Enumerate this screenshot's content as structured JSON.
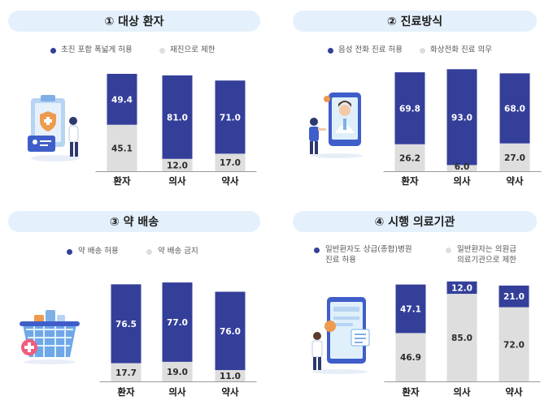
{
  "colors": {
    "primary": "#343f9a",
    "secondary": "#dedede",
    "pill": "#e4f0fb"
  },
  "chart_data": [
    {
      "type": "bar",
      "title": "① 대상 환자",
      "categories": [
        "환자",
        "의사",
        "약사"
      ],
      "series": [
        {
          "name": "초진 포함 폭넓게 허용",
          "values": [
            49.4,
            81.0,
            71.0
          ]
        },
        {
          "name": "재진으로 제한",
          "values": [
            45.1,
            12.0,
            17.0
          ]
        }
      ],
      "value_labels": [
        [
          "49.4",
          "81.0",
          "71.0"
        ],
        [
          "45.1",
          "12.0",
          "17.0"
        ]
      ],
      "ylim": [
        0,
        100
      ]
    },
    {
      "type": "bar",
      "title": "② 진료방식",
      "categories": [
        "환자",
        "의사",
        "약사"
      ],
      "series": [
        {
          "name": "음성 전화 진료 허용",
          "values": [
            69.8,
            93.0,
            68.0
          ]
        },
        {
          "name": "화상전화 진료 의무",
          "values": [
            26.2,
            6.0,
            27.0
          ]
        }
      ],
      "value_labels": [
        [
          "69.8",
          "93.0",
          "68.0"
        ],
        [
          "26.2",
          "6.0",
          "27.0"
        ]
      ],
      "ylim": [
        0,
        100
      ]
    },
    {
      "type": "bar",
      "title": "③ 약 배송",
      "categories": [
        "환자",
        "의사",
        "약사"
      ],
      "series": [
        {
          "name": "약 배송 허용",
          "values": [
            76.5,
            77.0,
            76.0
          ]
        },
        {
          "name": "약 배송 금지",
          "values": [
            17.7,
            19.0,
            11.0
          ]
        }
      ],
      "value_labels": [
        [
          "76.5",
          "77.0",
          "76.0"
        ],
        [
          "17.7",
          "19.0",
          "11.0"
        ]
      ],
      "ylim": [
        0,
        100
      ]
    },
    {
      "type": "bar",
      "title": "④ 시행 의료기관",
      "categories": [
        "환자",
        "의사",
        "약사"
      ],
      "series": [
        {
          "name": "일반환자도 상급(종합)병원 진료 허용",
          "values": [
            47.1,
            12.0,
            21.0
          ]
        },
        {
          "name": "일반환자는 의원급 의료기관으로 제한",
          "values": [
            46.9,
            85.0,
            72.0
          ]
        }
      ],
      "value_labels": [
        [
          "47.1",
          "12.0",
          "21.0"
        ],
        [
          "46.9",
          "85.0",
          "72.0"
        ]
      ],
      "ylim": [
        0,
        100
      ]
    }
  ],
  "legends": [
    {
      "a": [
        "초진 포함 폭넓게 허용"
      ],
      "b": [
        "재진으로 제한"
      ]
    },
    {
      "a": [
        "음성 전화 진료 허용"
      ],
      "b": [
        "화상전화 진료 의무"
      ]
    },
    {
      "a": [
        "약 배송 허용"
      ],
      "b": [
        "약 배송 금지"
      ]
    },
    {
      "a": [
        "일반환자도 상급(종합)병원",
        "진료 허용"
      ],
      "b": [
        "일반환자는 의원급",
        "의료기관으로 제한"
      ]
    }
  ],
  "illustrations": [
    "clipboard-shield-icon",
    "video-doctor-icon",
    "medicine-basket-icon",
    "hospital-tablet-icon"
  ]
}
